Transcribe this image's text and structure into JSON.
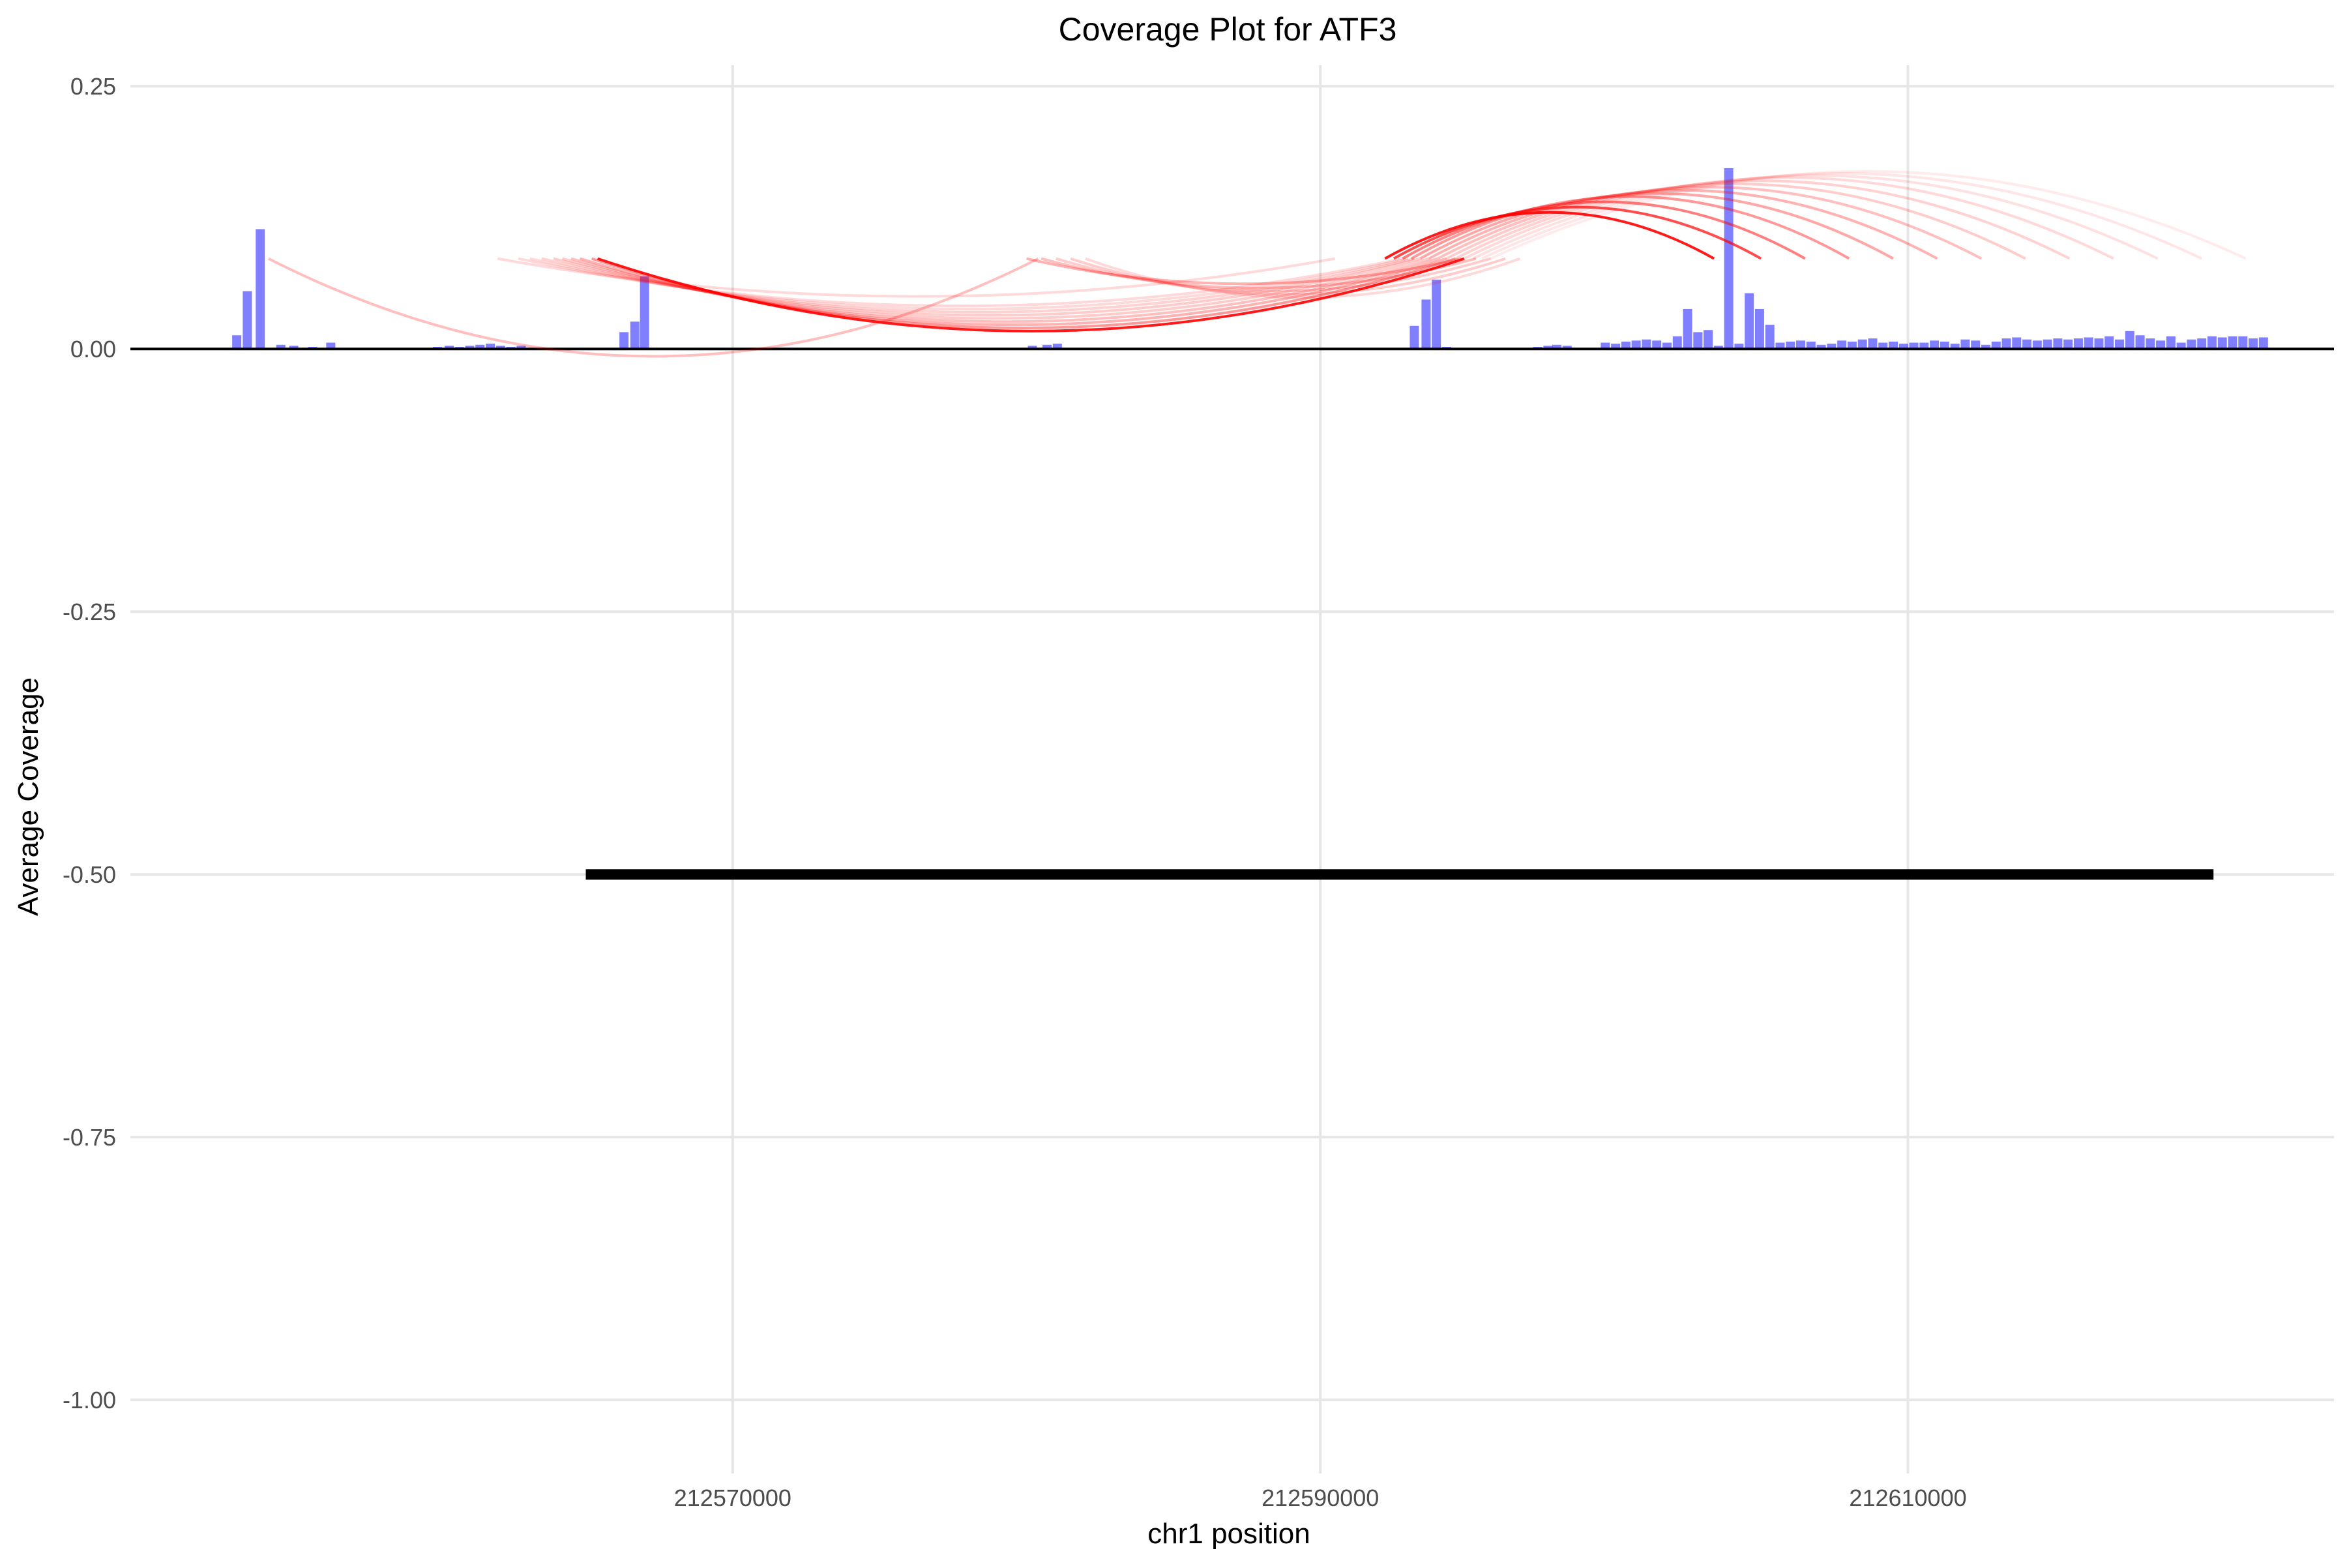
{
  "chart_data": {
    "type": "bar",
    "title": "Coverage Plot for ATF3",
    "xlabel": "chr1 position",
    "ylabel": "Average Coverage",
    "xlim": [
      212549500,
      212624500
    ],
    "ylim": [
      -1.07,
      0.27
    ],
    "x_ticks": [
      212570000,
      212590000,
      212610000
    ],
    "x_tick_labels": [
      "212570000",
      "212590000",
      "212610000"
    ],
    "y_ticks": [
      0.25,
      0.0,
      -0.25,
      -0.5,
      -0.75,
      -1.0
    ],
    "y_tick_labels": [
      "0.25",
      "0.00",
      "-0.25",
      "-0.50",
      "-0.75",
      "-1.00"
    ],
    "grid": true,
    "legend": "none",
    "colors": {
      "bars": "#0000ff",
      "junctions": "#ff0000",
      "gene": "#000000",
      "grid": "#e6e6e6"
    },
    "coverage_bars": {
      "series_color": "#0000ff",
      "opacity": 0.5,
      "x": [
        212553120,
        212553480,
        212553920,
        212554620,
        212555060,
        212555700,
        212556320,
        212559950,
        212560350,
        212560700,
        212561050,
        212561400,
        212561750,
        212562100,
        212562450,
        212562800,
        212566300,
        212566670,
        212567000,
        212580200,
        212580700,
        212581050,
        212593200,
        212593600,
        212593950,
        212594300,
        212597400,
        212597750,
        212598050,
        212598400,
        212599700,
        212600050,
        212600400,
        212600750,
        212601100,
        212601450,
        212601800,
        212602150,
        212602500,
        212602850,
        212603200,
        212603550,
        212603900,
        212604250,
        212604600,
        212604950,
        212605300,
        212605650,
        212606000,
        212606350,
        212606700,
        212607050,
        212607400,
        212607750,
        212608100,
        212608450,
        212608800,
        212609150,
        212609500,
        212609850,
        212610200,
        212610550,
        212610900,
        212611250,
        212611600,
        212611950,
        212612300,
        212612650,
        212613000,
        212613350,
        212613700,
        212614050,
        212614400,
        212614750,
        212615100,
        212615450,
        212615800,
        212616150,
        212616500,
        212616850,
        212617200,
        212617550,
        212617900,
        212618250,
        212618600,
        212618950,
        212619300,
        212619650,
        212620000,
        212620350,
        212620700,
        212621050,
        212621400,
        212621750,
        212622100
      ],
      "y": [
        0.013,
        0.055,
        0.114,
        0.004,
        0.003,
        0.002,
        0.006,
        0.002,
        0.003,
        0.002,
        0.003,
        0.004,
        0.005,
        0.003,
        0.002,
        0.003,
        0.016,
        0.026,
        0.069,
        0.003,
        0.004,
        0.005,
        0.022,
        0.047,
        0.066,
        0.002,
        0.002,
        0.003,
        0.004,
        0.003,
        0.006,
        0.005,
        0.007,
        0.008,
        0.009,
        0.008,
        0.006,
        0.012,
        0.038,
        0.016,
        0.018,
        0.003,
        0.172,
        0.005,
        0.053,
        0.038,
        0.023,
        0.006,
        0.007,
        0.008,
        0.007,
        0.004,
        0.005,
        0.008,
        0.007,
        0.009,
        0.01,
        0.006,
        0.007,
        0.005,
        0.006,
        0.006,
        0.008,
        0.007,
        0.005,
        0.009,
        0.008,
        0.004,
        0.007,
        0.01,
        0.011,
        0.009,
        0.008,
        0.009,
        0.01,
        0.009,
        0.01,
        0.011,
        0.01,
        0.012,
        0.009,
        0.017,
        0.013,
        0.01,
        0.008,
        0.012,
        0.006,
        0.009,
        0.01,
        0.012,
        0.011,
        0.012,
        0.012,
        0.01,
        0.011
      ]
    },
    "junction_arcs": {
      "series_color": "#ff0000",
      "arcs": [
        {
          "start": 212565400,
          "end": 212594900,
          "alpha": 0.9,
          "y0": 0.086,
          "peak": 0.017
        },
        {
          "start": 212565200,
          "end": 212594600,
          "alpha": 0.4,
          "y0": 0.086,
          "peak": 0.02
        },
        {
          "start": 212564800,
          "end": 212594300,
          "alpha": 0.3,
          "y0": 0.086,
          "peak": 0.023
        },
        {
          "start": 212564500,
          "end": 212594000,
          "alpha": 0.25,
          "y0": 0.086,
          "peak": 0.026
        },
        {
          "start": 212564200,
          "end": 212593700,
          "alpha": 0.2,
          "y0": 0.086,
          "peak": 0.029
        },
        {
          "start": 212563900,
          "end": 212593400,
          "alpha": 0.2,
          "y0": 0.086,
          "peak": 0.032
        },
        {
          "start": 212563500,
          "end": 212593200,
          "alpha": 0.18,
          "y0": 0.086,
          "peak": 0.035
        },
        {
          "start": 212563100,
          "end": 212593000,
          "alpha": 0.15,
          "y0": 0.086,
          "peak": 0.038
        },
        {
          "start": 212562700,
          "end": 212592800,
          "alpha": 0.15,
          "y0": 0.086,
          "peak": 0.041
        },
        {
          "start": 212554200,
          "end": 212580400,
          "alpha": 0.25,
          "y0": 0.086,
          "peak": -0.007
        },
        {
          "start": 212562000,
          "end": 212590500,
          "alpha": 0.15,
          "y0": 0.086,
          "peak": 0.05
        },
        {
          "start": 212592200,
          "end": 212603400,
          "alpha": 0.9,
          "y0": 0.086,
          "peak": 0.13
        },
        {
          "start": 212592500,
          "end": 212605000,
          "alpha": 0.7,
          "y0": 0.086,
          "peak": 0.135
        },
        {
          "start": 212592800,
          "end": 212606500,
          "alpha": 0.5,
          "y0": 0.086,
          "peak": 0.14
        },
        {
          "start": 212593100,
          "end": 212608000,
          "alpha": 0.4,
          "y0": 0.086,
          "peak": 0.145
        },
        {
          "start": 212593400,
          "end": 212609500,
          "alpha": 0.35,
          "y0": 0.086,
          "peak": 0.148
        },
        {
          "start": 212593700,
          "end": 212611000,
          "alpha": 0.3,
          "y0": 0.086,
          "peak": 0.151
        },
        {
          "start": 212594000,
          "end": 212612500,
          "alpha": 0.25,
          "y0": 0.086,
          "peak": 0.154
        },
        {
          "start": 212594300,
          "end": 212614000,
          "alpha": 0.2,
          "y0": 0.086,
          "peak": 0.157
        },
        {
          "start": 212594600,
          "end": 212615500,
          "alpha": 0.18,
          "y0": 0.086,
          "peak": 0.16
        },
        {
          "start": 212594900,
          "end": 212617000,
          "alpha": 0.15,
          "y0": 0.086,
          "peak": 0.163
        },
        {
          "start": 212595200,
          "end": 212618500,
          "alpha": 0.12,
          "y0": 0.086,
          "peak": 0.165
        },
        {
          "start": 212595500,
          "end": 212620000,
          "alpha": 0.1,
          "y0": 0.086,
          "peak": 0.167
        },
        {
          "start": 212595800,
          "end": 212621500,
          "alpha": 0.08,
          "y0": 0.086,
          "peak": 0.169
        },
        {
          "start": 212580000,
          "end": 212594800,
          "alpha": 0.3,
          "y0": 0.086,
          "peak": 0.062
        },
        {
          "start": 212580500,
          "end": 212595300,
          "alpha": 0.25,
          "y0": 0.086,
          "peak": 0.058
        },
        {
          "start": 212581000,
          "end": 212595800,
          "alpha": 0.2,
          "y0": 0.086,
          "peak": 0.055
        },
        {
          "start": 212581500,
          "end": 212596300,
          "alpha": 0.2,
          "y0": 0.086,
          "peak": 0.052
        },
        {
          "start": 212582000,
          "end": 212596800,
          "alpha": 0.15,
          "y0": 0.086,
          "peak": 0.049
        }
      ]
    },
    "gene_model": {
      "name": "ATF3",
      "start": 212565000,
      "end": 212620400,
      "y": -0.5,
      "color": "#000000"
    }
  }
}
